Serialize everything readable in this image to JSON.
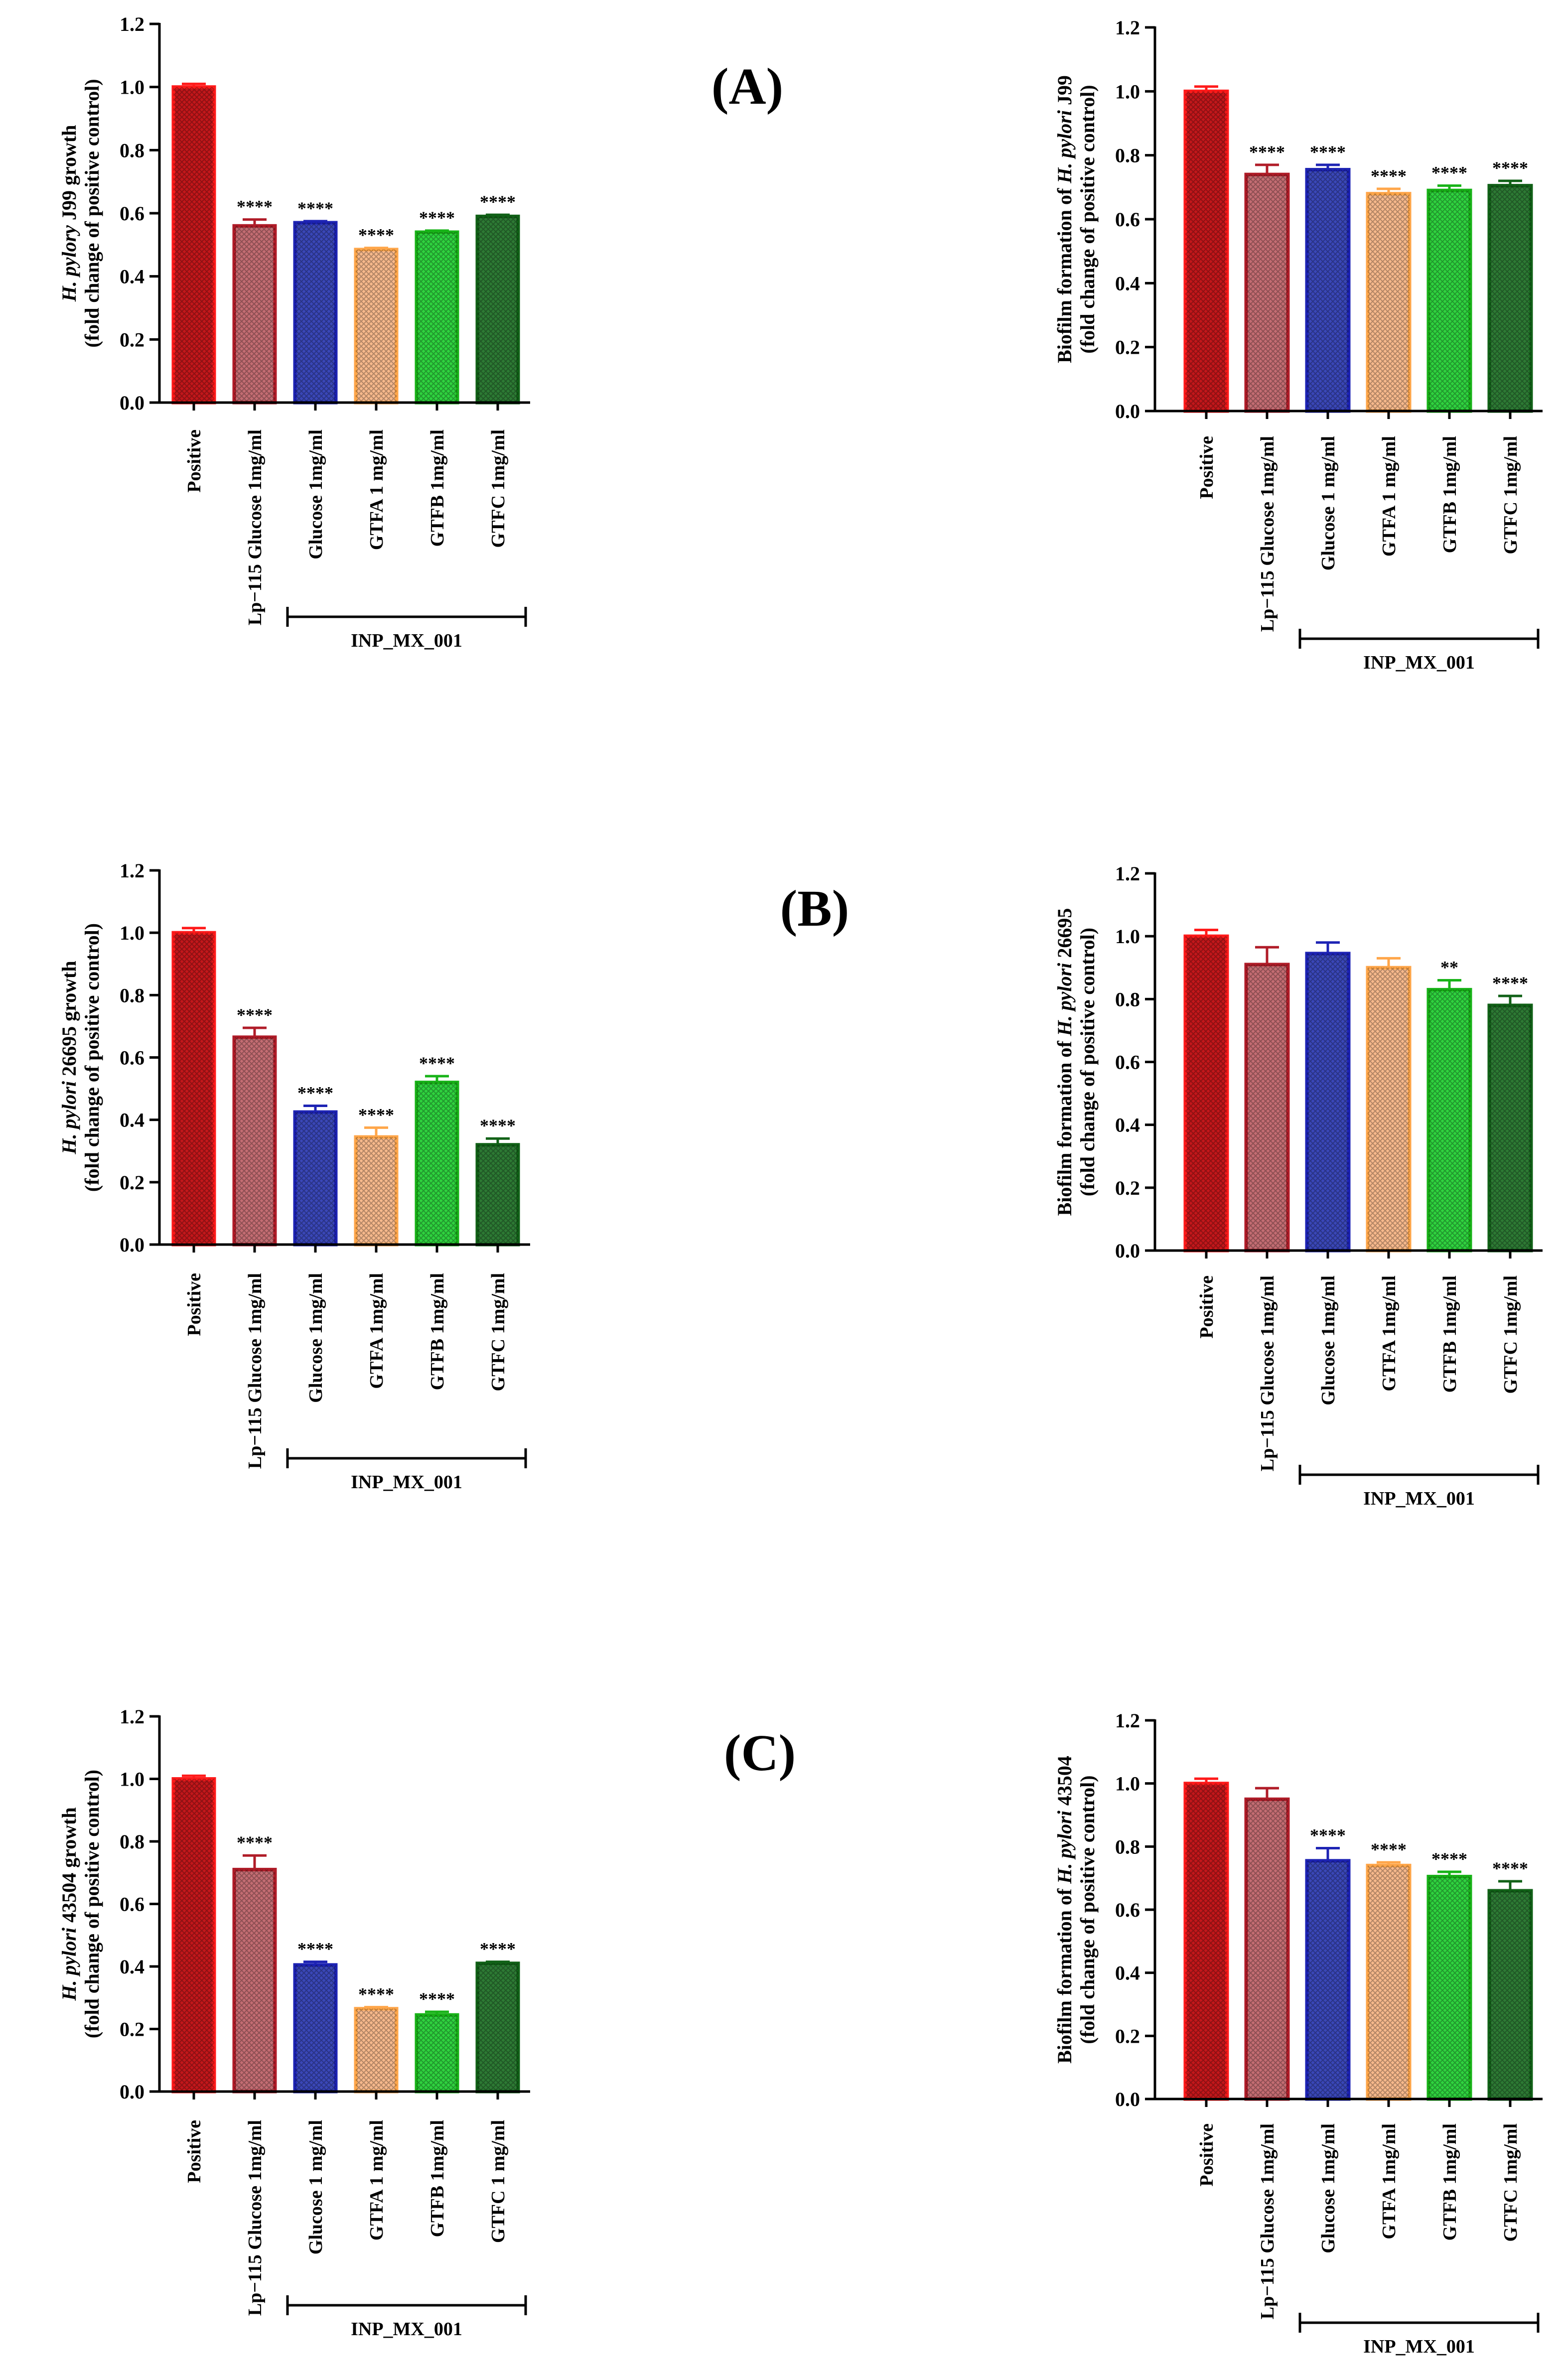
{
  "panel_labels": [
    "(A)",
    "(B)",
    "(C)"
  ],
  "chart_data": [
    {
      "type": "bar",
      "panel": "(A)",
      "ylabel_parts": [
        {
          "t": "H. pylory",
          "i": true
        },
        {
          "t": " J99 growth",
          "i": false
        }
      ],
      "ylabel2": "(fold change of positive control)",
      "ylim": [
        0,
        1.2
      ],
      "yticks": [
        "0.0",
        "0.2",
        "0.4",
        "0.6",
        "0.8",
        "1.0",
        "1.2"
      ],
      "categories": [
        "Positive",
        "Lp−115 Glucose 1mg/ml",
        "Glucose 1mg/ml",
        "GTFA 1 mg/ml",
        "GTFB 1mg/ml",
        "GTFC 1mg/ml"
      ],
      "values": [
        1.0,
        0.56,
        0.57,
        0.485,
        0.54,
        0.59
      ],
      "errors": [
        0.01,
        0.02,
        0.005,
        0.005,
        0.005,
        0.005
      ],
      "significance": [
        "",
        "****",
        "****",
        "****",
        "****",
        "****"
      ],
      "group_label": "INP_MX_001",
      "group_span": [
        2,
        5
      ]
    },
    {
      "type": "bar",
      "panel": "(A)",
      "ylabel_parts": [
        {
          "t": "Biofilm formation of ",
          "i": false
        },
        {
          "t": "H. pylori",
          "i": true
        },
        {
          "t": " J99",
          "i": false
        }
      ],
      "ylabel2": "(fold change of positive control)",
      "ylim": [
        0,
        1.2
      ],
      "yticks": [
        "0.0",
        "0.2",
        "0.4",
        "0.6",
        "0.8",
        "1.0",
        "1.2"
      ],
      "categories": [
        "Positive",
        "Lp−115 Glucose 1mg/ml",
        "Glucose 1 mg/ml",
        "GTFA 1 mg/ml",
        "GTFB 1mg/ml",
        "GTFC 1mg/ml"
      ],
      "values": [
        1.0,
        0.74,
        0.755,
        0.68,
        0.69,
        0.705
      ],
      "errors": [
        0.015,
        0.03,
        0.015,
        0.015,
        0.015,
        0.015
      ],
      "significance": [
        "",
        "****",
        "****",
        "****",
        "****",
        "****"
      ],
      "group_label": "INP_MX_001",
      "group_span": [
        2,
        5
      ]
    },
    {
      "type": "bar",
      "panel": "(B)",
      "ylabel_parts": [
        {
          "t": "H. pylori",
          "i": true
        },
        {
          "t": " 26695 growth",
          "i": false
        }
      ],
      "ylabel2": "(fold change of positive control)",
      "ylim": [
        0,
        1.2
      ],
      "yticks": [
        "0.0",
        "0.2",
        "0.4",
        "0.6",
        "0.8",
        "1.0",
        "1.2"
      ],
      "categories": [
        "Positive",
        "Lp−115 Glucose 1mg/ml",
        "Glucose 1mg/ml",
        "GTFA 1mg/ml",
        "GTFB 1mg/ml",
        "GTFC 1mg/ml"
      ],
      "values": [
        1.0,
        0.665,
        0.425,
        0.345,
        0.52,
        0.32
      ],
      "errors": [
        0.015,
        0.03,
        0.02,
        0.03,
        0.02,
        0.02
      ],
      "significance": [
        "",
        "****",
        "****",
        "****",
        "****",
        "****"
      ],
      "group_label": "INP_MX_001",
      "group_span": [
        2,
        5
      ]
    },
    {
      "type": "bar",
      "panel": "(B)",
      "ylabel_parts": [
        {
          "t": "Biofilm formation of ",
          "i": false
        },
        {
          "t": "H. pylori",
          "i": true
        },
        {
          "t": " 26695",
          "i": false
        }
      ],
      "ylabel2": "(fold change of positive control)",
      "ylim": [
        0,
        1.2
      ],
      "yticks": [
        "0.0",
        "0.2",
        "0.4",
        "0.6",
        "0.8",
        "1.0",
        "1.2"
      ],
      "categories": [
        "Positive",
        "Lp−115 Glucose 1mg/ml",
        "Glucose 1mg/ml",
        "GTFA 1mg/ml",
        "GTFB 1mg/ml",
        "GTFC 1mg/ml"
      ],
      "values": [
        1.0,
        0.91,
        0.945,
        0.9,
        0.83,
        0.78
      ],
      "errors": [
        0.02,
        0.055,
        0.035,
        0.03,
        0.03,
        0.03
      ],
      "significance": [
        "",
        "",
        "",
        "",
        "**",
        "****"
      ],
      "group_label": "INP_MX_001",
      "group_span": [
        2,
        5
      ]
    },
    {
      "type": "bar",
      "panel": "(C)",
      "ylabel_parts": [
        {
          "t": "H. pylori",
          "i": true
        },
        {
          "t": " 43504 growth",
          "i": false
        }
      ],
      "ylabel2": "(fold change of positive control)",
      "ylim": [
        0,
        1.2
      ],
      "yticks": [
        "0.0",
        "0.2",
        "0.4",
        "0.6",
        "0.8",
        "1.0",
        "1.2"
      ],
      "categories": [
        "Positive",
        "Lp−115 Glucose 1mg/ml",
        "Glucose 1 mg/ml",
        "GTFA 1 mg/ml",
        "GTFB 1mg/ml",
        "GTFC 1 mg/ml"
      ],
      "values": [
        1.0,
        0.71,
        0.405,
        0.265,
        0.245,
        0.41
      ],
      "errors": [
        0.01,
        0.045,
        0.01,
        0.005,
        0.01,
        0.005
      ],
      "significance": [
        "",
        "****",
        "****",
        "****",
        "****",
        "****"
      ],
      "group_label": "INP_MX_001",
      "group_span": [
        2,
        5
      ]
    },
    {
      "type": "bar",
      "panel": "(C)",
      "ylabel_parts": [
        {
          "t": "Biofilm formation of ",
          "i": false
        },
        {
          "t": "H. pylori",
          "i": true
        },
        {
          "t": " 43504",
          "i": false
        }
      ],
      "ylabel2": "(fold change of positive control)",
      "ylim": [
        0,
        1.2
      ],
      "yticks": [
        "0.0",
        "0.2",
        "0.4",
        "0.6",
        "0.8",
        "1.0",
        "1.2"
      ],
      "categories": [
        "Positive",
        "Lp−115 Glucose 1mg/ml",
        "Glucose 1mg/ml",
        "GTFA 1mg/ml",
        "GTFB 1mg/ml",
        "GTFC 1mg/ml"
      ],
      "values": [
        1.0,
        0.95,
        0.755,
        0.74,
        0.705,
        0.66
      ],
      "errors": [
        0.015,
        0.035,
        0.04,
        0.01,
        0.015,
        0.03
      ],
      "significance": [
        "",
        "",
        "****",
        "****",
        "****",
        "****"
      ],
      "group_label": "INP_MX_001",
      "group_span": [
        2,
        5
      ]
    }
  ],
  "bar_colors": [
    {
      "fill": "#c3171b",
      "stroke": "#ff1a1a"
    },
    {
      "fill": "#c46d73",
      "stroke": "#b01c28"
    },
    {
      "fill": "#3a47b8",
      "stroke": "#1d23b4"
    },
    {
      "fill": "#f7b98c",
      "stroke": "#ffa64a"
    },
    {
      "fill": "#2fd33f",
      "stroke": "#18b318"
    },
    {
      "fill": "#2d7a34",
      "stroke": "#116117"
    }
  ]
}
